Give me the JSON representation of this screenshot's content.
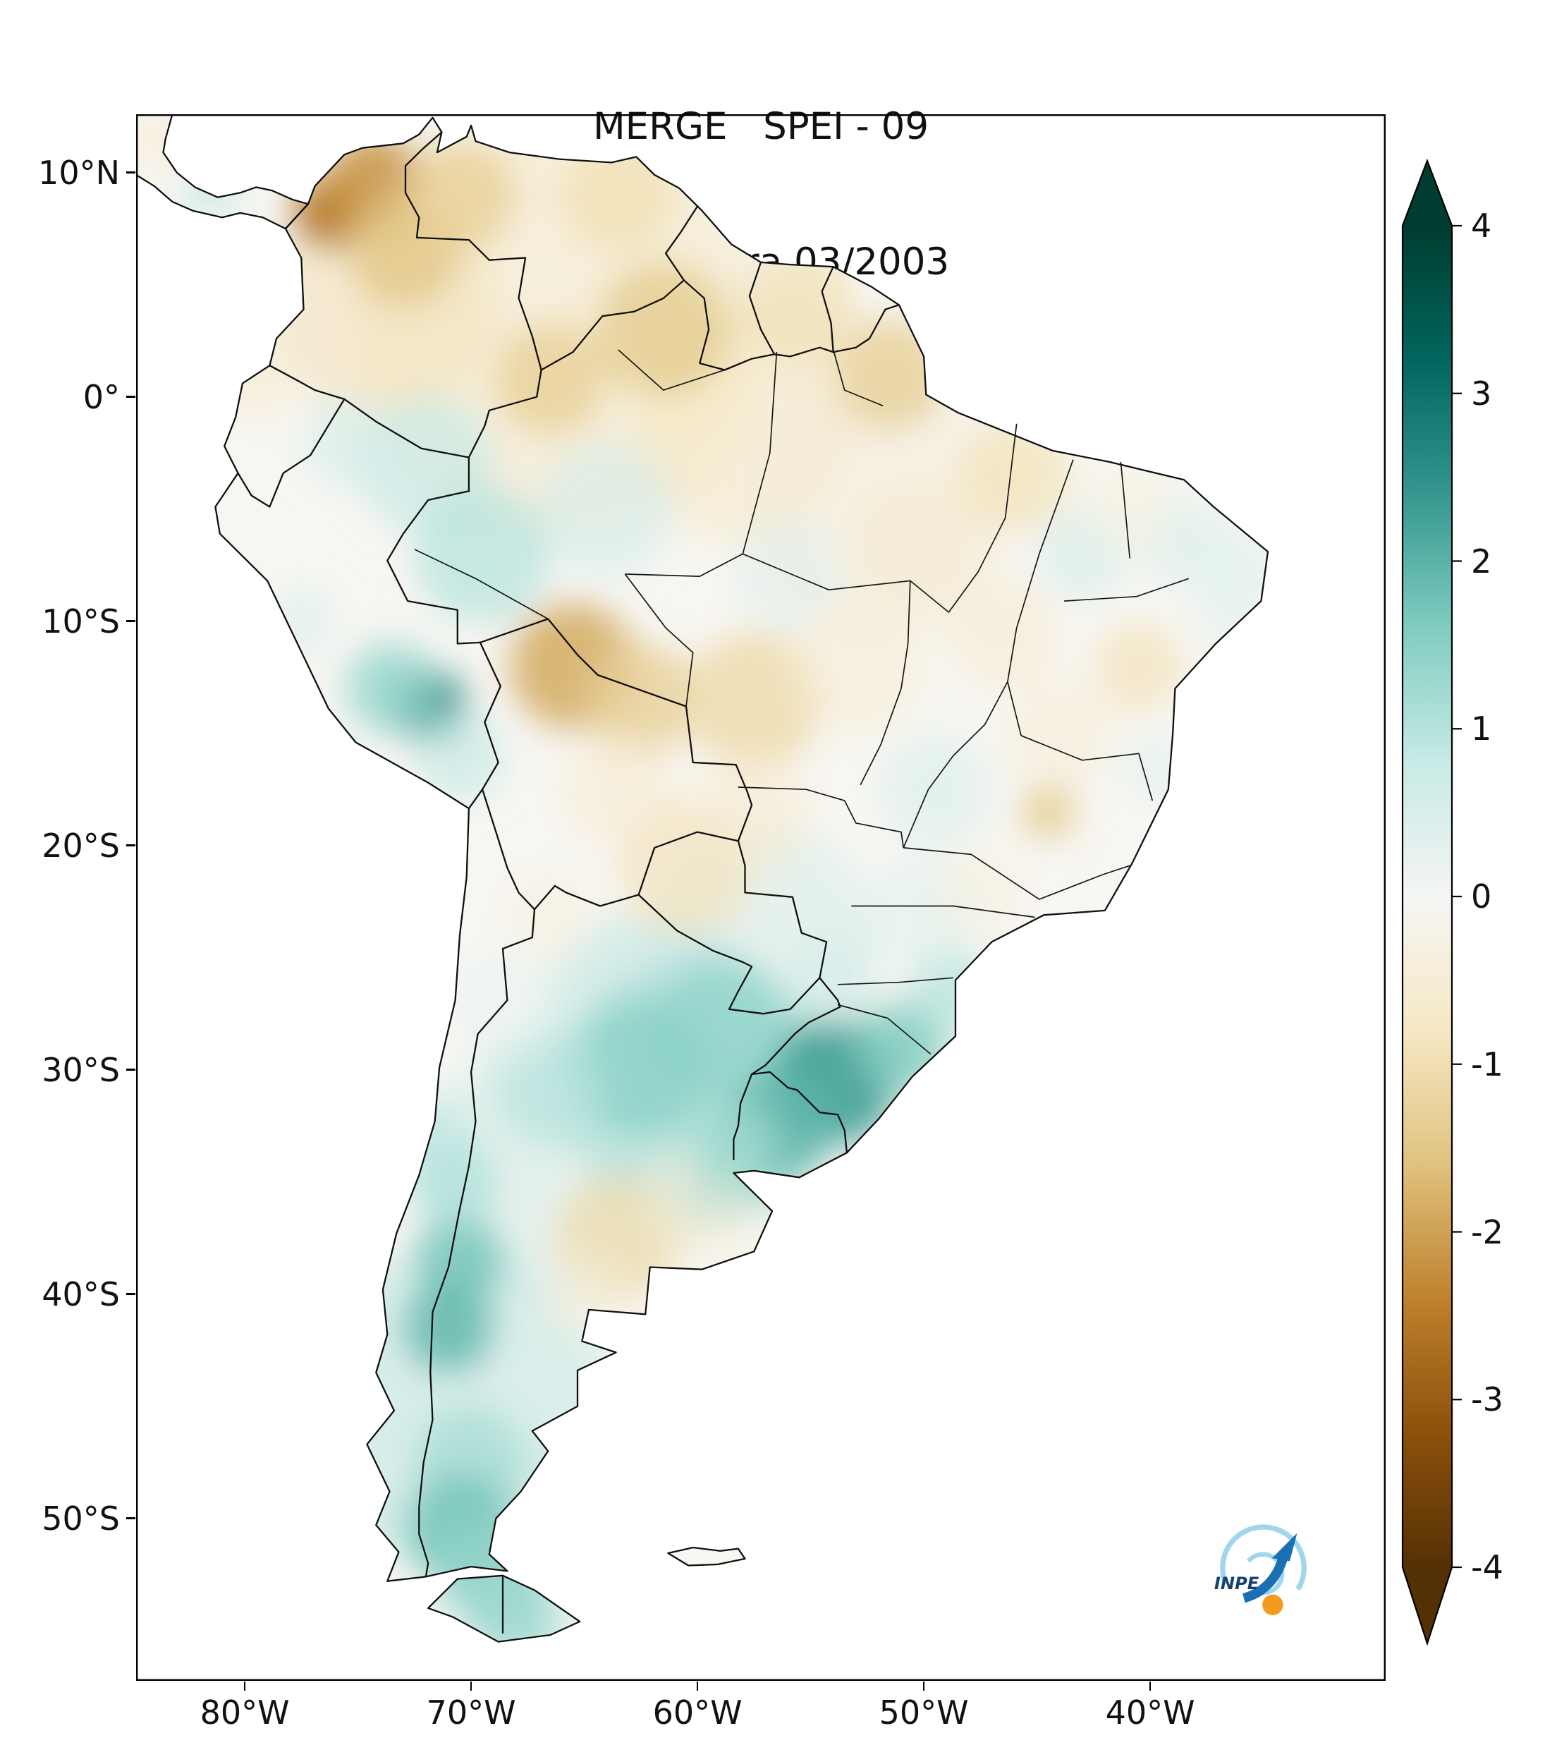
{
  "title": {
    "line1": "MERGE   SPEI - 09",
    "line2": "Válido para 03/2003"
  },
  "logo": {
    "label": "INPE"
  },
  "chart_data": {
    "type": "heatmap",
    "region": "South America",
    "field": "SPEI - 09",
    "valid_date": "03/2003",
    "value_range": [
      -4,
      4
    ],
    "colormap": {
      "name": "BrBG",
      "stops": [
        {
          "v": -4,
          "color": "#543005"
        },
        {
          "v": -3.2,
          "color": "#8c510a"
        },
        {
          "v": -2.4,
          "color": "#bf812d"
        },
        {
          "v": -1.6,
          "color": "#dfc27d"
        },
        {
          "v": -0.8,
          "color": "#f6e8c3"
        },
        {
          "v": 0,
          "color": "#f5f5f5"
        },
        {
          "v": 0.8,
          "color": "#c7eae5"
        },
        {
          "v": 1.6,
          "color": "#80cdc1"
        },
        {
          "v": 2.4,
          "color": "#35978f"
        },
        {
          "v": 3.2,
          "color": "#01665e"
        },
        {
          "v": 4,
          "color": "#003c30"
        }
      ]
    },
    "lat_ticks": [
      {
        "label": "10°N",
        "value": 10
      },
      {
        "label": "0°",
        "value": 0
      },
      {
        "label": "10°S",
        "value": -10
      },
      {
        "label": "20°S",
        "value": -20
      },
      {
        "label": "30°S",
        "value": -30
      },
      {
        "label": "40°S",
        "value": -40
      },
      {
        "label": "50°S",
        "value": -50
      }
    ],
    "lon_ticks": [
      {
        "label": "80°W",
        "value": -80
      },
      {
        "label": "70°W",
        "value": -70
      },
      {
        "label": "60°W",
        "value": -60
      },
      {
        "label": "50°W",
        "value": -50
      },
      {
        "label": "40°W",
        "value": -40
      }
    ],
    "colorbar_ticks": [
      {
        "label": "4",
        "value": 4
      },
      {
        "label": "3",
        "value": 3
      },
      {
        "label": "2",
        "value": 2
      },
      {
        "label": "1",
        "value": 1
      },
      {
        "label": "0",
        "value": 0
      },
      {
        "label": "-1",
        "value": -1
      },
      {
        "label": "-2",
        "value": -2
      },
      {
        "label": "-3",
        "value": -3
      },
      {
        "label": "-4",
        "value": -4
      }
    ],
    "anomaly_format": [
      "lon",
      "lat",
      "spei",
      "radius_deg",
      "opacity"
    ],
    "anomalies": [
      [
        -66,
        3,
        -0.7,
        9,
        0.55
      ],
      [
        -74,
        4,
        -0.9,
        5,
        0.6
      ],
      [
        -58,
        -1.5,
        -0.8,
        5,
        0.55
      ],
      [
        -52,
        -5,
        -0.45,
        6,
        0.5
      ],
      [
        -60,
        -31,
        1.6,
        6,
        0.6
      ],
      [
        -66,
        -34,
        0.6,
        6,
        0.5
      ],
      [
        -71,
        -45,
        0.9,
        7,
        0.55
      ],
      [
        -57,
        -24,
        0.6,
        5,
        0.5
      ],
      [
        -62,
        -28,
        0.9,
        5,
        0.55
      ],
      [
        -76.3,
        8.2,
        -2.6,
        1.6,
        0.9
      ],
      [
        -74.3,
        9.5,
        -2.2,
        2.2,
        0.85
      ],
      [
        -73,
        6.5,
        -1.5,
        2.5,
        0.8
      ],
      [
        -70.5,
        9,
        -1.3,
        2.5,
        0.8
      ],
      [
        -63.5,
        9,
        -1,
        2.5,
        0.75
      ],
      [
        -61.5,
        3,
        -1.4,
        3,
        0.8
      ],
      [
        -66.5,
        0.8,
        -1.3,
        2.5,
        0.8
      ],
      [
        -55.5,
        4,
        -1,
        2.5,
        0.75
      ],
      [
        -51.5,
        1,
        -1.3,
        2.5,
        0.8
      ],
      [
        -46,
        -3.5,
        -0.9,
        2.5,
        0.75
      ],
      [
        -72,
        -3,
        0.8,
        3,
        0.7
      ],
      [
        -69.5,
        -7,
        1,
        3,
        0.75
      ],
      [
        -64,
        -5,
        0.6,
        3,
        0.6
      ],
      [
        -71.8,
        -13.8,
        2.6,
        1.6,
        0.95
      ],
      [
        -73.5,
        -13,
        1.4,
        2,
        0.8
      ],
      [
        -70.5,
        -16,
        0.8,
        2,
        0.7
      ],
      [
        -65.5,
        -12,
        -1.9,
        2.8,
        0.85
      ],
      [
        -62.5,
        -13.5,
        -1.3,
        2.5,
        0.8
      ],
      [
        -57.5,
        -13.5,
        -1.1,
        3,
        0.8
      ],
      [
        -53,
        -12,
        -0.5,
        3,
        0.6
      ],
      [
        -46.5,
        -10.5,
        -0.6,
        2.5,
        0.6
      ],
      [
        -40.5,
        -12,
        -0.9,
        2,
        0.7
      ],
      [
        -44.5,
        -18.5,
        -1.4,
        1.2,
        0.85
      ],
      [
        -49.5,
        -17.5,
        0.5,
        2.5,
        0.6
      ],
      [
        -43,
        -7,
        0.6,
        2,
        0.6
      ],
      [
        -38.5,
        -6.5,
        0.5,
        2,
        0.6
      ],
      [
        -36.5,
        -9.5,
        0.4,
        1.5,
        0.6
      ],
      [
        -35.8,
        -7.5,
        0.4,
        1.5,
        0.6
      ],
      [
        -60.5,
        -21,
        -0.9,
        3,
        0.7
      ],
      [
        -57.5,
        -18.5,
        -0.6,
        2.5,
        0.6
      ],
      [
        -54,
        -30.5,
        2.3,
        2.8,
        0.9
      ],
      [
        -56.5,
        -32.5,
        1.9,
        2.5,
        0.85
      ],
      [
        -51,
        -29,
        1.6,
        2,
        0.85
      ],
      [
        -59,
        -28,
        1.4,
        3,
        0.8
      ],
      [
        -62.5,
        -30,
        1.5,
        3,
        0.8
      ],
      [
        -66.5,
        -31,
        1,
        2.5,
        0.7
      ],
      [
        -48.8,
        -26.5,
        1,
        1.8,
        0.75
      ],
      [
        -50,
        -23,
        0.4,
        2.5,
        0.55
      ],
      [
        -63.5,
        -37.5,
        -1.1,
        2.8,
        0.75
      ],
      [
        -60,
        -36,
        -0.5,
        2.5,
        0.55
      ],
      [
        -70.5,
        -38.5,
        1.7,
        2,
        0.85
      ],
      [
        -71,
        -41.5,
        1.9,
        2,
        0.85
      ],
      [
        -70.8,
        -35,
        1.1,
        2,
        0.75
      ],
      [
        -71.8,
        -33,
        0.9,
        1.8,
        0.7
      ],
      [
        -70,
        -47.5,
        1.2,
        2.5,
        0.75
      ],
      [
        -70.5,
        -50.5,
        1.7,
        2.5,
        0.85
      ],
      [
        -69,
        -52.5,
        1.4,
        2.5,
        0.8
      ],
      [
        -68,
        -54.5,
        1.3,
        2,
        0.8
      ],
      [
        -66,
        -44,
        0.4,
        3,
        0.5
      ],
      [
        -65,
        -40,
        -0.4,
        2,
        0.5
      ],
      [
        -47.5,
        -22,
        -0.4,
        2,
        0.5
      ],
      [
        -54,
        -26,
        0.6,
        2,
        0.6
      ],
      [
        -63.5,
        -17.5,
        -0.6,
        2.5,
        0.6
      ],
      [
        -79.5,
        0.5,
        -0.6,
        1.5,
        0.65
      ],
      [
        -75.5,
        -2,
        0.6,
        2,
        0.6
      ],
      [
        -77.5,
        -10,
        0.5,
        1.5,
        0.6
      ],
      [
        -66.5,
        -23,
        -0.4,
        2,
        0.5
      ],
      [
        -81.5,
        9.3,
        0.9,
        1.2,
        0.7
      ],
      [
        -83.8,
        11.5,
        -0.5,
        1.5,
        0.6
      ],
      [
        -44,
        -15,
        -0.5,
        2.5,
        0.55
      ],
      [
        -41,
        -5,
        -0.4,
        2,
        0.5
      ],
      [
        -50.5,
        -6.5,
        -0.6,
        3,
        0.55
      ],
      [
        -56,
        -8,
        0.4,
        2.5,
        0.5
      ],
      [
        -68.5,
        -27,
        0.3,
        2.5,
        0.45
      ],
      [
        -58.5,
        -33.5,
        1.2,
        2,
        0.75
      ],
      [
        -39.8,
        -16.5,
        0.4,
        1.5,
        0.55
      ]
    ]
  }
}
